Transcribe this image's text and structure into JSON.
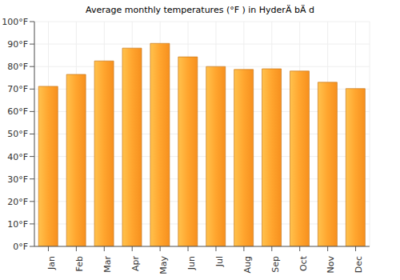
{
  "chart_data": {
    "type": "bar",
    "title": "Average monthly temperatures (°F ) in HyderÄ bÄ d",
    "categories": [
      "Jan",
      "Feb",
      "Mar",
      "Apr",
      "May",
      "Jun",
      "Jul",
      "Aug",
      "Sep",
      "Oct",
      "Nov",
      "Dec"
    ],
    "values": [
      71.2,
      76.5,
      82.5,
      88.2,
      90.3,
      84.3,
      80.0,
      78.7,
      79.0,
      78.0,
      73.0,
      70.2
    ],
    "color": "#ffa52e",
    "ylim": [
      0,
      100
    ],
    "yticks": [
      {
        "value": 0,
        "label": "0°F"
      },
      {
        "value": 10,
        "label": "10°F"
      },
      {
        "value": 20,
        "label": "20°F"
      },
      {
        "value": 30,
        "label": "30°F"
      },
      {
        "value": 40,
        "label": "40°F"
      },
      {
        "value": 50,
        "label": "50°F"
      },
      {
        "value": 60,
        "label": "60°F"
      },
      {
        "value": 70,
        "label": "70°F"
      },
      {
        "value": 80,
        "label": "80°F"
      },
      {
        "value": 90,
        "label": "90°F"
      },
      {
        "value": 100,
        "label": "100°F"
      }
    ],
    "grid": true
  }
}
